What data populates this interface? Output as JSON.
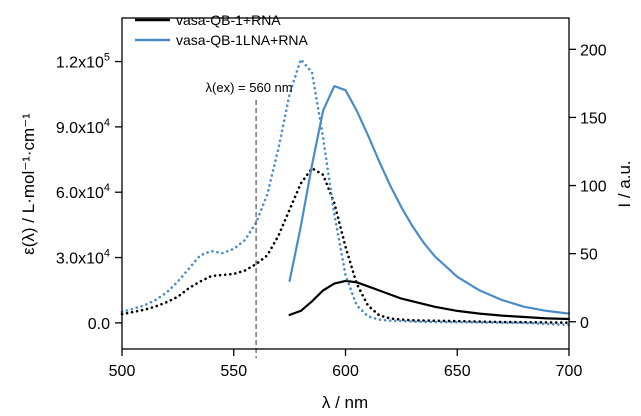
{
  "chart_data": {
    "type": "line",
    "xlabel": "λ / nm",
    "ylabel_left": "ε(λ) / L·mol⁻¹·cm⁻¹",
    "ylabel_right": "I / a.u.",
    "xlim": [
      500,
      700
    ],
    "xticks": [
      500,
      550,
      600,
      650,
      700
    ],
    "ylim_left": [
      -12000,
      140000
    ],
    "yticks_left": [
      0,
      30000,
      60000,
      90000,
      120000
    ],
    "yticks_left_mantissa": [
      "0.0",
      "3.0x10",
      "6.0x10",
      "9.0x10",
      "1.2x10"
    ],
    "yticks_left_exponent": [
      "",
      "4",
      "4",
      "4",
      "5"
    ],
    "ylim_right": [
      -20,
      223
    ],
    "yticks_right": [
      0,
      50,
      100,
      150,
      200
    ],
    "annotation": {
      "text": "λ(ex) = 560 nm",
      "x": 560
    },
    "colors": {
      "black": "#000000",
      "blue": "#4a8cc8"
    },
    "legend_position": "top-left",
    "series": [
      {
        "name": "vasa-QB-1+RNA",
        "color": "#000000",
        "absorption": {
          "axis": "left",
          "style": "dotted",
          "x": [
            500,
            505,
            510,
            515,
            520,
            525,
            530,
            535,
            540,
            545,
            550,
            555,
            560,
            565,
            570,
            575,
            580,
            585,
            590,
            595,
            600,
            605,
            610,
            615,
            620,
            625,
            630,
            640,
            650,
            660,
            670,
            680,
            690,
            700
          ],
          "y": [
            4000,
            5000,
            6000,
            7500,
            9500,
            12000,
            16000,
            19000,
            21500,
            22000,
            22500,
            24000,
            27000,
            31000,
            40000,
            52000,
            64000,
            71000,
            68000,
            55000,
            35000,
            18000,
            8000,
            3500,
            2000,
            1500,
            1200,
            1000,
            800,
            600,
            400,
            300,
            200,
            100
          ]
        },
        "emission": {
          "axis": "right",
          "style": "solid",
          "x": [
            575,
            580,
            585,
            590,
            595,
            600,
            605,
            610,
            615,
            620,
            625,
            630,
            640,
            650,
            660,
            670,
            680,
            690,
            700
          ],
          "y": [
            5,
            8,
            15,
            23,
            28,
            30,
            29,
            26,
            23,
            20,
            17,
            15,
            11,
            8,
            6,
            4.5,
            3.5,
            2.5,
            2
          ]
        }
      },
      {
        "name": "vasa-QB-1LNA+RNA",
        "color": "#4a8cc8",
        "absorption": {
          "axis": "left",
          "style": "dotted",
          "x": [
            500,
            505,
            510,
            515,
            520,
            525,
            530,
            535,
            540,
            545,
            550,
            555,
            560,
            565,
            570,
            575,
            580,
            585,
            590,
            595,
            600,
            605,
            610,
            615,
            620,
            625,
            630,
            640,
            650,
            660,
            670,
            680,
            690,
            700
          ],
          "y": [
            5000,
            6500,
            8000,
            10500,
            14000,
            19000,
            25000,
            31000,
            33000,
            32000,
            34000,
            38000,
            46000,
            59000,
            80000,
            105000,
            121000,
            115000,
            85000,
            50000,
            22000,
            8000,
            3000,
            1500,
            1000,
            800,
            600,
            400,
            300,
            200,
            100,
            0,
            -500,
            -1000
          ]
        },
        "emission": {
          "axis": "right",
          "style": "solid",
          "x": [
            575,
            580,
            585,
            590,
            595,
            600,
            605,
            610,
            615,
            620,
            625,
            630,
            635,
            640,
            650,
            660,
            670,
            680,
            690,
            700
          ],
          "y": [
            30,
            70,
            115,
            155,
            173,
            170,
            155,
            137,
            118,
            100,
            84,
            70,
            58,
            48,
            33,
            23,
            16,
            11,
            8,
            6
          ]
        }
      }
    ]
  }
}
